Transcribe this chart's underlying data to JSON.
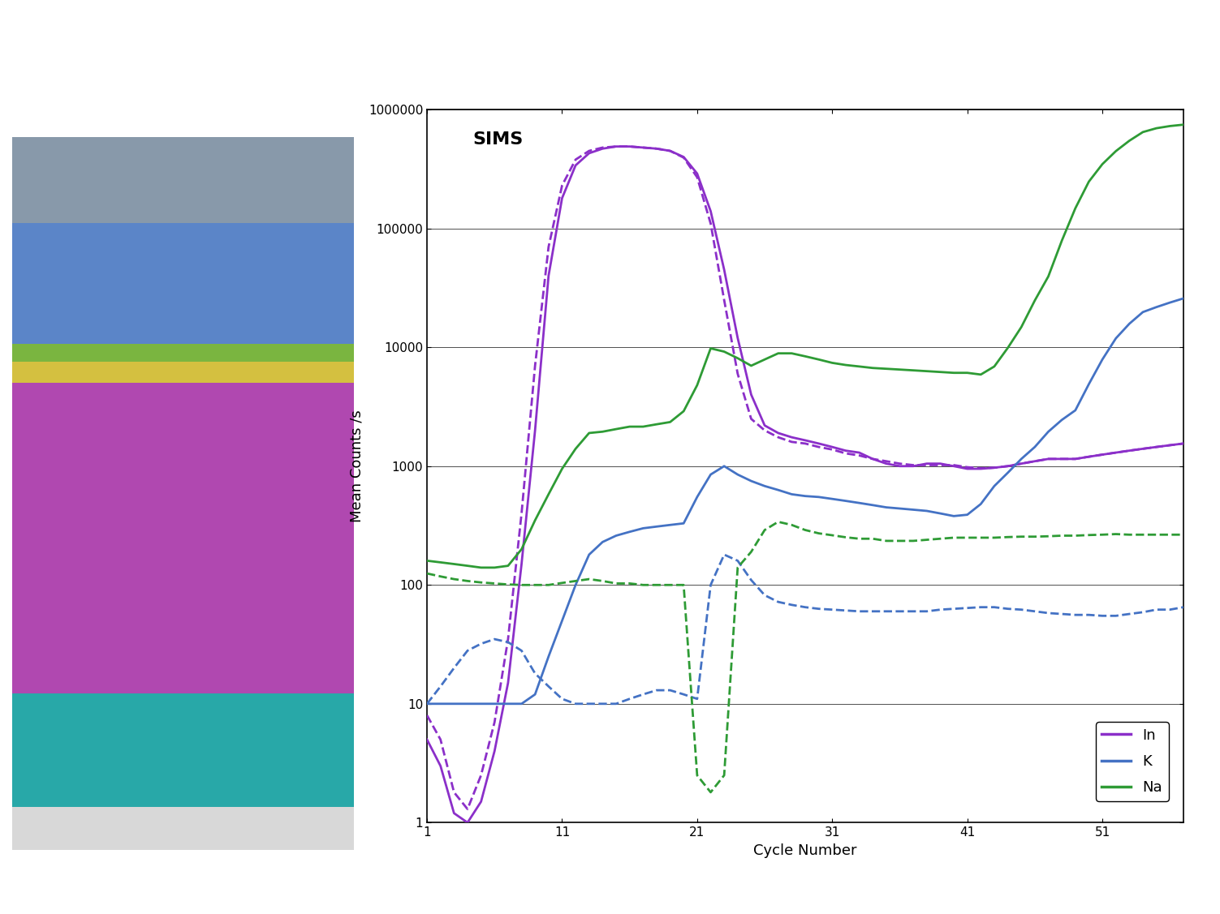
{
  "title": "SIMS",
  "xlabel": "Cycle Number",
  "ylabel": "Mean Counts /s",
  "xlim": [
    1,
    57
  ],
  "ylim_log": [
    1,
    1000000
  ],
  "xticks": [
    1,
    11,
    21,
    31,
    41,
    51
  ],
  "legend_labels": [
    "In",
    "K",
    "Na"
  ],
  "colors": {
    "In": "#8B2FC9",
    "K": "#4472C4",
    "Na": "#2E9B35"
  },
  "In_solid_x": [
    1,
    2,
    3,
    4,
    5,
    6,
    7,
    8,
    9,
    10,
    11,
    12,
    13,
    14,
    15,
    16,
    17,
    18,
    19,
    20,
    21,
    22,
    23,
    24,
    25,
    26,
    27,
    28,
    29,
    30,
    31,
    32,
    33,
    34,
    35,
    36,
    37,
    38,
    39,
    40,
    41,
    42,
    43,
    44,
    45,
    46,
    47,
    48,
    49,
    50,
    51,
    52,
    53,
    54,
    55,
    56,
    57
  ],
  "In_solid_y": [
    5,
    3,
    1.2,
    1.0,
    1.5,
    4,
    15,
    150,
    2000,
    40000,
    180000,
    340000,
    430000,
    470000,
    490000,
    490000,
    480000,
    470000,
    450000,
    400000,
    290000,
    140000,
    45000,
    12000,
    4000,
    2200,
    1900,
    1750,
    1650,
    1550,
    1450,
    1350,
    1300,
    1150,
    1050,
    1000,
    1000,
    1050,
    1050,
    1000,
    950,
    950,
    970,
    1000,
    1050,
    1100,
    1150,
    1150,
    1150,
    1200,
    1250,
    1300,
    1350,
    1400,
    1450,
    1500,
    1550
  ],
  "In_dashed_x": [
    1,
    2,
    3,
    4,
    5,
    6,
    7,
    8,
    9,
    10,
    11,
    12,
    13,
    14,
    15,
    16,
    17,
    18,
    19,
    20,
    21,
    22,
    23,
    24,
    25,
    26,
    27,
    28,
    29,
    30,
    31,
    32,
    33,
    34,
    35,
    36,
    37,
    38,
    39,
    40,
    41,
    42,
    43,
    44,
    45,
    46,
    47,
    48,
    49,
    50,
    51,
    52,
    53,
    54,
    55,
    56,
    57
  ],
  "In_dashed_y": [
    8,
    5,
    1.8,
    1.3,
    2.5,
    7,
    35,
    400,
    7000,
    70000,
    230000,
    380000,
    450000,
    480000,
    490000,
    490000,
    480000,
    470000,
    450000,
    395000,
    270000,
    110000,
    25000,
    6000,
    2500,
    2000,
    1750,
    1600,
    1550,
    1450,
    1380,
    1280,
    1230,
    1150,
    1100,
    1050,
    1020,
    1020,
    1020,
    1020,
    980,
    960,
    970,
    1000,
    1050,
    1100,
    1150,
    1150,
    1150,
    1200,
    1250,
    1300,
    1350,
    1400,
    1450,
    1500,
    1550
  ],
  "K_solid_x": [
    1,
    2,
    3,
    4,
    5,
    6,
    7,
    8,
    9,
    10,
    11,
    12,
    13,
    14,
    15,
    16,
    17,
    18,
    19,
    20,
    21,
    22,
    23,
    24,
    25,
    26,
    27,
    28,
    29,
    30,
    31,
    32,
    33,
    34,
    35,
    36,
    37,
    38,
    39,
    40,
    41,
    42,
    43,
    44,
    45,
    46,
    47,
    48,
    49,
    50,
    51,
    52,
    53,
    54,
    55,
    56,
    57
  ],
  "K_solid_y": [
    10,
    10,
    10,
    10,
    10,
    10,
    10,
    10,
    12,
    25,
    50,
    100,
    180,
    230,
    260,
    280,
    300,
    310,
    320,
    330,
    550,
    850,
    1000,
    850,
    750,
    680,
    630,
    580,
    560,
    550,
    530,
    510,
    490,
    470,
    450,
    440,
    430,
    420,
    400,
    380,
    390,
    480,
    680,
    880,
    1150,
    1450,
    1950,
    2450,
    2950,
    4900,
    7900,
    11900,
    15800,
    19800,
    21800,
    23800,
    25800
  ],
  "K_dashed_x": [
    1,
    2,
    3,
    4,
    5,
    6,
    7,
    8,
    9,
    10,
    11,
    12,
    13,
    14,
    15,
    16,
    17,
    18,
    19,
    20,
    21,
    22,
    23,
    24,
    25,
    26,
    27,
    28,
    29,
    30,
    31,
    32,
    33,
    34,
    35,
    36,
    37,
    38,
    39,
    40,
    41,
    42,
    43,
    44,
    45,
    46,
    47,
    48,
    49,
    50,
    51,
    52,
    53,
    54,
    55,
    56,
    57
  ],
  "K_dashed_y": [
    10,
    14,
    20,
    28,
    32,
    35,
    33,
    28,
    18,
    14,
    11,
    10,
    10,
    10,
    10,
    11,
    12,
    13,
    13,
    12,
    11,
    100,
    180,
    160,
    110,
    82,
    72,
    68,
    65,
    63,
    62,
    61,
    60,
    60,
    60,
    60,
    60,
    60,
    62,
    63,
    64,
    65,
    65,
    63,
    62,
    60,
    58,
    57,
    56,
    56,
    55,
    55,
    57,
    59,
    62,
    62,
    65
  ],
  "Na_solid_x": [
    1,
    2,
    3,
    4,
    5,
    6,
    7,
    8,
    9,
    10,
    11,
    12,
    13,
    14,
    15,
    16,
    17,
    18,
    19,
    20,
    21,
    22,
    23,
    24,
    25,
    26,
    27,
    28,
    29,
    30,
    31,
    32,
    33,
    34,
    35,
    36,
    37,
    38,
    39,
    40,
    41,
    42,
    43,
    44,
    45,
    46,
    47,
    48,
    49,
    50,
    51,
    52,
    53,
    54,
    55,
    56,
    57
  ],
  "Na_solid_y": [
    160,
    155,
    150,
    145,
    140,
    140,
    145,
    200,
    350,
    580,
    950,
    1400,
    1900,
    1950,
    2050,
    2150,
    2150,
    2250,
    2350,
    2900,
    4800,
    9800,
    9200,
    8100,
    7000,
    7900,
    8900,
    8900,
    8400,
    7900,
    7400,
    7100,
    6900,
    6700,
    6600,
    6500,
    6400,
    6300,
    6200,
    6100,
    6100,
    5900,
    6900,
    9900,
    14800,
    24800,
    39500,
    79000,
    148000,
    248000,
    348000,
    448000,
    548000,
    648000,
    698000,
    728000,
    748000
  ],
  "Na_dashed_x": [
    1,
    2,
    3,
    4,
    5,
    6,
    7,
    8,
    9,
    10,
    11,
    12,
    13,
    14,
    15,
    16,
    17,
    18,
    19,
    20,
    21,
    22,
    23,
    24,
    25,
    26,
    27,
    28,
    29,
    30,
    31,
    32,
    33,
    34,
    35,
    36,
    37,
    38,
    39,
    40,
    41,
    42,
    43,
    44,
    45,
    46,
    47,
    48,
    49,
    50,
    51,
    52,
    53,
    54,
    55,
    56,
    57
  ],
  "Na_dashed_y": [
    125,
    118,
    112,
    108,
    105,
    103,
    101,
    100,
    100,
    100,
    104,
    108,
    112,
    108,
    103,
    103,
    100,
    100,
    100,
    100,
    2.5,
    1.8,
    2.5,
    140,
    190,
    290,
    340,
    320,
    290,
    272,
    262,
    252,
    245,
    245,
    235,
    235,
    235,
    240,
    245,
    250,
    250,
    250,
    250,
    253,
    255,
    255,
    257,
    260,
    260,
    263,
    265,
    268,
    265,
    265,
    265,
    265,
    265
  ]
}
